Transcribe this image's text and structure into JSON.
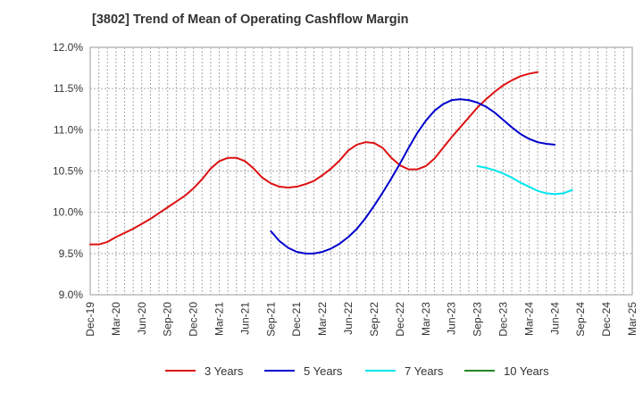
{
  "chart_data": {
    "type": "line",
    "title": "[3802]  Trend of Mean of Operating Cashflow Margin",
    "xlabel": "",
    "ylabel": "",
    "ylim": [
      9.0,
      12.0
    ],
    "y_tick_labels": [
      "9.0%",
      "9.5%",
      "10.0%",
      "10.5%",
      "11.0%",
      "11.5%",
      "12.0%"
    ],
    "y_tick_values": [
      9.0,
      9.5,
      10.0,
      10.5,
      11.0,
      11.5,
      12.0
    ],
    "x_tick_labels": [
      "Dec-19",
      "Mar-20",
      "Jun-20",
      "Sep-20",
      "Dec-20",
      "Mar-21",
      "Jun-21",
      "Sep-21",
      "Dec-21",
      "Mar-22",
      "Jun-22",
      "Sep-22",
      "Dec-22",
      "Mar-23",
      "Jun-23",
      "Sep-23",
      "Dec-23",
      "Mar-24",
      "Jun-24",
      "Sep-24",
      "Dec-24",
      "Mar-25"
    ],
    "grid": true,
    "legend_position": "bottom",
    "series": [
      {
        "name": "3 Years",
        "color": "#dd1111",
        "start_index": 0,
        "values": [
          9.61,
          9.61,
          9.64,
          9.7,
          9.75,
          9.8,
          9.86,
          9.92,
          9.99,
          10.06,
          10.13,
          10.2,
          10.29,
          10.4,
          10.53,
          10.62,
          10.66,
          10.66,
          10.62,
          10.53,
          10.42,
          10.35,
          10.31,
          10.3,
          10.31,
          10.34,
          10.38,
          10.45,
          10.53,
          10.63,
          10.75,
          10.82,
          10.85,
          10.84,
          10.78,
          10.66,
          10.57,
          10.52,
          10.52,
          10.56,
          10.65,
          10.78,
          10.91,
          11.03,
          11.15,
          11.27,
          11.37,
          11.46,
          11.54,
          11.6,
          11.65,
          11.68,
          11.7
        ]
      },
      {
        "name": "5 Years",
        "color": "#0000cc",
        "start_index": 21,
        "values": [
          9.77,
          9.65,
          9.57,
          9.52,
          9.5,
          9.5,
          9.52,
          9.56,
          9.62,
          9.7,
          9.8,
          9.93,
          10.08,
          10.24,
          10.41,
          10.59,
          10.78,
          10.96,
          11.11,
          11.23,
          11.31,
          11.36,
          11.37,
          11.36,
          11.33,
          11.28,
          11.21,
          11.12,
          11.03,
          10.95,
          10.89,
          10.85,
          10.83,
          10.82
        ]
      },
      {
        "name": "7 Years",
        "color": "#00e5ee",
        "start_index": 45,
        "values": [
          10.56,
          10.54,
          10.51,
          10.47,
          10.42,
          10.36,
          10.31,
          10.26,
          10.23,
          10.22,
          10.23,
          10.27
        ]
      },
      {
        "name": "10 Years",
        "color": "#228822",
        "start_index": 0,
        "values": []
      }
    ]
  }
}
